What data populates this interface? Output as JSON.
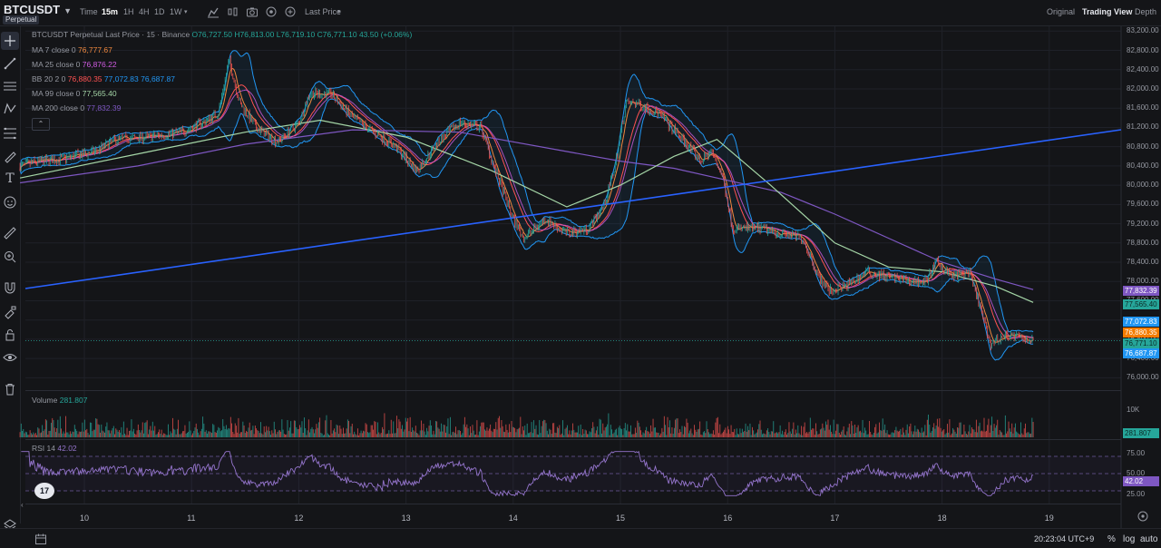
{
  "header": {
    "symbol": "BTCUSDT",
    "badge": "Perpetual",
    "time_label": "Time",
    "intervals": [
      "15m",
      "1H",
      "4H",
      "1D",
      "1W"
    ],
    "active_interval": "15m",
    "price_type": "Last Price",
    "views": [
      "Original",
      "Trading View",
      "Depth"
    ],
    "active_view": "Trading View"
  },
  "legend": {
    "title": "BTCUSDT Perpetual Last Price · 15 · Binance",
    "ohlc": {
      "o": "O76,727.50",
      "h": "H76,813.00",
      "l": "L76,719.10",
      "c": "C76,771.10",
      "chg": "43.50 (+0.06%)"
    },
    "ma7": {
      "label": "MA 7 close 0",
      "value": "76,777.67",
      "color": "#f0883e"
    },
    "ma25": {
      "label": "MA 25 close 0",
      "value": "76,876.22",
      "color": "#d05ce3"
    },
    "bb": {
      "label": "BB 20 2 0",
      "basis": "76,880.35",
      "upper": "77,072.83",
      "lower": "76,687.87",
      "basis_color": "#ff5252",
      "upper_color": "#2196f3",
      "lower_color": "#2196f3"
    },
    "ma99": {
      "label": "MA 99 close 0",
      "value": "77,565.40",
      "color": "#a5d6a7"
    },
    "ma200": {
      "label": "MA 200 close 0",
      "value": "77,832.39",
      "color": "#7e57c2"
    }
  },
  "price_axis": [
    "83,200.00",
    "82,800.00",
    "82,400.00",
    "82,000.00",
    "81,600.00",
    "81,200.00",
    "80,800.00",
    "80,400.00",
    "80,000.00",
    "79,600.00",
    "79,200.00",
    "78,800.00",
    "78,400.00",
    "78,000.00",
    "77,600.00",
    "77,200.00",
    "76,800.00",
    "76,400.00",
    "76,000.00"
  ],
  "price_tags": [
    {
      "value": "77,832.39",
      "color": "#7e57c2"
    },
    {
      "value": "77,565.40",
      "color": "#26a69a",
      "text": "#0b2a26"
    },
    {
      "value": "77,072.83",
      "color": "#2196f3"
    },
    {
      "value": "76,880.35",
      "color": "#f57c00"
    },
    {
      "value": "76,771.10",
      "color": "#26a69a",
      "text": "#0b2a26"
    },
    {
      "value": "76,687.87",
      "color": "#2196f3"
    }
  ],
  "volume": {
    "label": "Volume",
    "value": "281.807",
    "axis_label": "10K",
    "tag": "281.807"
  },
  "rsi": {
    "label": "RSI 14",
    "value": "42.02",
    "levels": [
      "75.00",
      "50.00",
      "25.00"
    ],
    "tag": "42.02"
  },
  "dates": [
    "10",
    "11",
    "12",
    "13",
    "14",
    "15",
    "16",
    "17",
    "18",
    "19"
  ],
  "bottom": {
    "clock": "20:23:04 UTC+9",
    "percent": "%",
    "log": "log",
    "auto": "auto"
  },
  "colors": {
    "up": "#26a69a",
    "down": "#ef5350",
    "trend": "#2962ff",
    "bb": "#2196f3",
    "ma99": "#a5d6a7",
    "ma200": "#7e57c2"
  },
  "chart_data": {
    "type": "line",
    "title": "BTCUSDT Perpetual Last Price · 15 · Binance",
    "x": [
      "10",
      "11",
      "12",
      "13",
      "14",
      "15",
      "16",
      "17",
      "18",
      "19"
    ],
    "ylim": [
      75800,
      83300
    ],
    "series": [
      {
        "name": "MA 200 close 0",
        "points": [
          [
            9.4,
            80050
          ],
          [
            10.5,
            80400
          ],
          [
            11.5,
            80850
          ],
          [
            12.5,
            81150
          ],
          [
            13.5,
            81100
          ],
          [
            14.5,
            80700
          ],
          [
            15.0,
            80500
          ],
          [
            15.5,
            80350
          ],
          [
            16.0,
            80100
          ],
          [
            16.5,
            79850
          ],
          [
            17.0,
            79400
          ],
          [
            17.5,
            78900
          ],
          [
            18.0,
            78400
          ],
          [
            18.5,
            78050
          ],
          [
            18.85,
            77832
          ]
        ]
      },
      {
        "name": "MA 99 close 0",
        "points": [
          [
            9.4,
            80150
          ],
          [
            10.5,
            80650
          ],
          [
            11.5,
            81100
          ],
          [
            12.2,
            81350
          ],
          [
            13.0,
            81000
          ],
          [
            13.8,
            80300
          ],
          [
            14.5,
            79550
          ],
          [
            15.0,
            80000
          ],
          [
            15.5,
            80600
          ],
          [
            15.9,
            80950
          ],
          [
            16.4,
            80000
          ],
          [
            17.0,
            78800
          ],
          [
            17.5,
            78300
          ],
          [
            18.0,
            78200
          ],
          [
            18.5,
            77900
          ],
          [
            18.85,
            77565
          ]
        ]
      }
    ]
  }
}
